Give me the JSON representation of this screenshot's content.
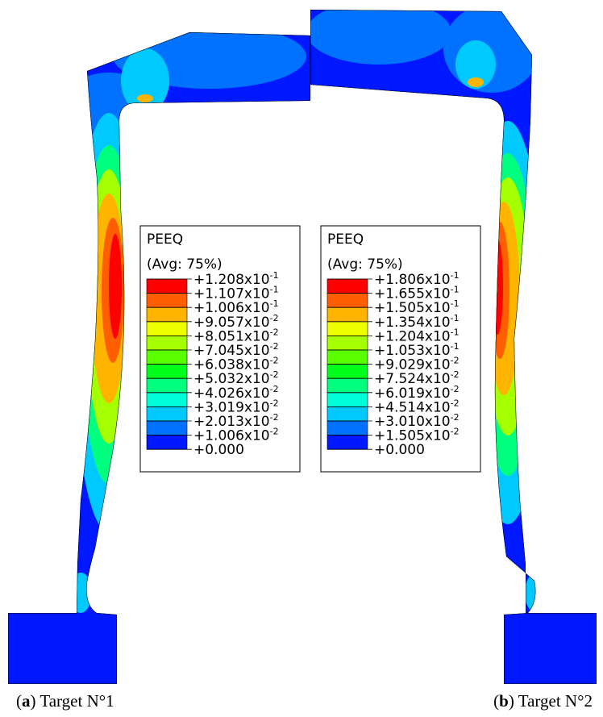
{
  "contour_colors": [
    "#ff0000",
    "#ff5f00",
    "#ffb400",
    "#f0ff00",
    "#a6ff00",
    "#5aff00",
    "#00ff1b",
    "#00ff7e",
    "#00ffd8",
    "#00c9ff",
    "#0072ff",
    "#0018ff"
  ],
  "legends": [
    {
      "title": "PEEQ",
      "subtitle": "(Avg: 75%)",
      "levels": [
        {
          "text": "+1.208x10",
          "exp": "-1"
        },
        {
          "text": "+1.107x10",
          "exp": "-1"
        },
        {
          "text": "+1.006x10",
          "exp": "-1"
        },
        {
          "text": "+9.057x10",
          "exp": "-2"
        },
        {
          "text": "+8.051x10",
          "exp": "-2"
        },
        {
          "text": "+7.045x10",
          "exp": "-2"
        },
        {
          "text": "+6.038x10",
          "exp": "-2"
        },
        {
          "text": "+5.032x10",
          "exp": "-2"
        },
        {
          "text": "+4.026x10",
          "exp": "-2"
        },
        {
          "text": "+3.019x10",
          "exp": "-2"
        },
        {
          "text": "+2.013x10",
          "exp": "-2"
        },
        {
          "text": "+1.006x10",
          "exp": "-2"
        },
        {
          "text": "+0.000"
        }
      ]
    },
    {
      "title": "PEEQ",
      "subtitle": "(Avg: 75%)",
      "levels": [
        {
          "text": "+1.806x10",
          "exp": "-1"
        },
        {
          "text": "+1.655x10",
          "exp": "-1"
        },
        {
          "text": "+1.505x10",
          "exp": "-1"
        },
        {
          "text": "+1.354x10",
          "exp": "-1"
        },
        {
          "text": "+1.204x10",
          "exp": "-1"
        },
        {
          "text": "+1.053x10",
          "exp": "-1"
        },
        {
          "text": "+9.029x10",
          "exp": "-2"
        },
        {
          "text": "+7.524x10",
          "exp": "-2"
        },
        {
          "text": "+6.019x10",
          "exp": "-2"
        },
        {
          "text": "+4.514x10",
          "exp": "-2"
        },
        {
          "text": "+3.010x10",
          "exp": "-2"
        },
        {
          "text": "+1.505x10",
          "exp": "-2"
        },
        {
          "text": "+0.000"
        }
      ]
    }
  ],
  "captions": [
    {
      "parts": [
        "(",
        "a",
        ") Target N°1"
      ]
    },
    {
      "parts": [
        "(",
        "b",
        ") Target N°2"
      ]
    }
  ]
}
